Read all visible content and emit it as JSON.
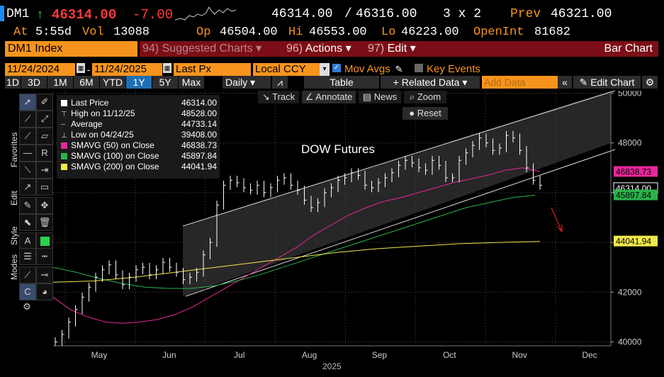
{
  "header": {
    "ticker": "DM1",
    "arrow": "↑",
    "last": "46314.00",
    "change": "-7.00",
    "bid": "46314.00",
    "slash": "/",
    "ask": "46316.00",
    "size": "3 x 2",
    "prev_label": "Prev",
    "prev_value": "46321.00",
    "at_label": "At",
    "time": "5:55d",
    "vol_label": "Vol",
    "vol": "13088",
    "open_label": "Op",
    "open": "46504.00",
    "hi_label": "Hi",
    "hi": "46553.00",
    "lo_label": "Lo",
    "lo": "46223.00",
    "oi_label": "OpenInt",
    "oi": "81682"
  },
  "menu": {
    "security": "DM1 Index",
    "suggested_num": "94)",
    "suggested": "Suggested Charts",
    "actions_num": "96)",
    "actions": "Actions",
    "edit_num": "97)",
    "edit": "Edit",
    "bar_chart": "Bar Chart"
  },
  "dates": {
    "start": "11/24/2024",
    "dash": "-",
    "end": "11/24/2025",
    "field": "Last Px",
    "currency": "Local CCY",
    "mov_avgs": "Mov Avgs",
    "key_events": "Key Events"
  },
  "tools": {
    "periods": [
      "1D",
      "3D",
      "1M",
      "6M",
      "YTD",
      "1Y",
      "5Y",
      "Max"
    ],
    "selected_period": "1Y",
    "frequency": "Daily",
    "table": "Table",
    "related": "+ Related Data",
    "add_data_placeholder": "Add Data",
    "edit_chart": "Edit Chart"
  },
  "chart_toolbar": {
    "track": "Track",
    "annotate": "Annotate",
    "news": "News",
    "zoom": "Zoom",
    "reset": "Reset"
  },
  "side_tabs": {
    "favorites": "Favorites",
    "edit": "Edit",
    "style": "Style",
    "modes": "Modes"
  },
  "legend": [
    {
      "label": "Last Price",
      "value": "46314.00",
      "color": "#ffffff",
      "marker": "square"
    },
    {
      "label": "High on 11/12/25",
      "value": "48528.00",
      "color": "#cccccc",
      "marker": "high"
    },
    {
      "label": "Average",
      "value": "44733.14",
      "color": "#cccccc",
      "marker": "avg"
    },
    {
      "label": "Low on 04/24/25",
      "value": "39408.00",
      "color": "#cccccc",
      "marker": "low"
    },
    {
      "label": "SMAVG (50)  on Close",
      "value": "46838.73",
      "color": "#e8279a",
      "marker": "square"
    },
    {
      "label": "SMAVG (100)  on Close",
      "value": "45897.84",
      "color": "#2bb24c",
      "marker": "square"
    },
    {
      "label": "SMAVG (200)  on Close",
      "value": "44041.94",
      "color": "#f1e84b",
      "marker": "square"
    }
  ],
  "chart_data": {
    "type": "line",
    "title": "DOW Futures",
    "xlabel": "2025",
    "x_ticks": [
      "May",
      "Jun",
      "Jul",
      "Aug",
      "Sep",
      "Oct",
      "Nov",
      "Dec"
    ],
    "y_ticks": [
      40000,
      42000,
      44000,
      46000,
      48000,
      50000
    ],
    "ylim": [
      39900,
      50100
    ],
    "y_tick_labels": [
      "40000",
      "42000",
      "44000",
      "46000",
      "48000",
      "50000"
    ],
    "price_tags": [
      {
        "value": "46838.73",
        "color": "#e8279a"
      },
      {
        "value": "46314.00",
        "color": "#ffffff"
      },
      {
        "value": "45897.84",
        "color": "#2bb24c"
      },
      {
        "value": "44041.94",
        "color": "#f1e84b"
      }
    ],
    "series": [
      {
        "name": "Last Price",
        "color": "#ffffff",
        "values": [
          40000,
          40300,
          40800,
          41300,
          41800,
          42200,
          42600,
          42900,
          43100,
          42700,
          42300,
          42600,
          42900,
          43000,
          42700,
          42900,
          43200,
          43000,
          42800,
          42500,
          42600,
          42800,
          43500,
          44000,
          45500,
          46300,
          46500,
          46400,
          46200,
          46100,
          46300,
          46000,
          46200,
          46500,
          46600,
          46300,
          46100,
          45700,
          45400,
          45600,
          46000,
          46200,
          46500,
          46600,
          46800,
          46700,
          46300,
          46200,
          46400,
          46600,
          46800,
          47100,
          47300,
          47200,
          47000,
          46900,
          47300,
          47100,
          46600,
          46600,
          47300,
          47600,
          47900,
          48200,
          48000,
          47700,
          47800,
          48300,
          48200,
          47700,
          47000,
          46500,
          46300
        ]
      },
      {
        "name": "SMAVG (50)",
        "color": "#e8279a",
        "values": [
          41800,
          41300,
          41000,
          40800,
          40750,
          40800,
          40900,
          41100,
          41400,
          41800,
          42200,
          42600,
          43000,
          43400,
          43800,
          44300,
          44700,
          45100,
          45400,
          45650,
          45800,
          46000,
          46200,
          46400,
          46550,
          46700,
          46900,
          47000,
          46850
        ]
      },
      {
        "name": "SMAVG (100)",
        "color": "#2bb24c",
        "values": [
          43000,
          42800,
          42550,
          42350,
          42200,
          42150,
          42150,
          42250,
          42450,
          42700,
          43000,
          43300,
          43600,
          43900,
          44200,
          44500,
          44800,
          45100,
          45400,
          45600,
          45800,
          45900
        ]
      },
      {
        "name": "SMAVG (200)",
        "color": "#f1e84b",
        "values": [
          42400,
          42450,
          42600,
          42800,
          43000,
          43200,
          43400,
          43600,
          43750,
          43850,
          43950,
          44000,
          44041
        ]
      }
    ]
  }
}
